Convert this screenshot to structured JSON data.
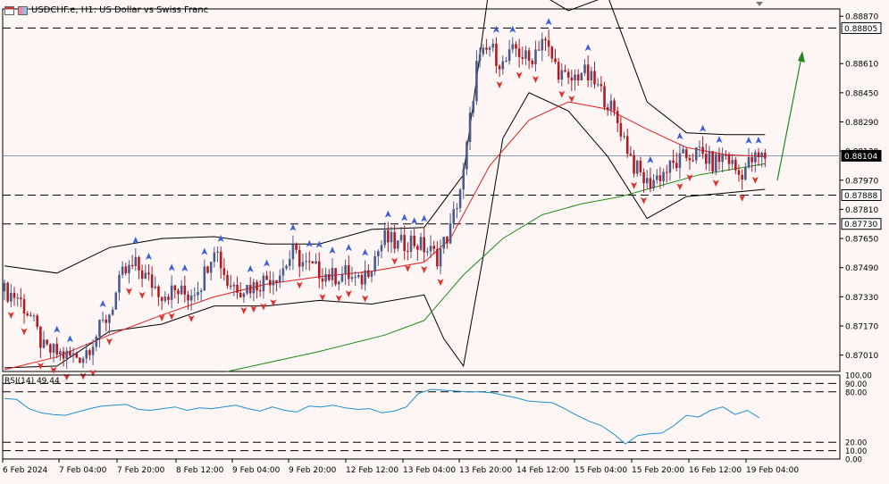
{
  "window": {
    "title": "USDCHF.e, H1:  US Dollar vs Swiss Franc"
  },
  "colors": {
    "background": "#fdf6f4",
    "bull": "#4b5a8a",
    "bear": "#b01a22",
    "ma_fast": "#e02020",
    "ma_slow": "#1e8a1e",
    "bollinger": "#000000",
    "rsi": "#1f8fd0",
    "arrow": "#1e8a1e",
    "fractal_up": "#3b5fd9",
    "fractal_down": "#e0302a"
  },
  "chart_data": [
    {
      "type": "candlestick",
      "symbol": "USDCHF.e",
      "timeframe": "H1",
      "title": "USDCHF.e, H1:  US Dollar vs Swiss Franc",
      "ylim": [
        0.8692,
        0.8891
      ],
      "y_tick_labels": [
        "0.88870",
        "0.88610",
        "0.88450",
        "0.88290",
        "0.88130",
        "0.87970",
        "0.87810",
        "0.87650",
        "0.87490",
        "0.87330",
        "0.87170",
        "0.87010"
      ],
      "x_tick_labels": [
        "6 Feb 2024",
        "7 Feb 04:00",
        "7 Feb 20:00",
        "8 Feb 12:00",
        "9 Feb 04:00",
        "9 Feb 20:00",
        "12 Feb 12:00",
        "13 Feb 04:00",
        "13 Feb 20:00",
        "14 Feb 12:00",
        "15 Feb 04:00",
        "15 Feb 20:00",
        "16 Feb 12:00",
        "19 Feb 04:00"
      ],
      "current_price": "0.88104",
      "horizontal_levels": [
        {
          "label": "0.88805",
          "value": 0.88805
        },
        {
          "label": "0.87888",
          "value": 0.87888
        },
        {
          "label": "0.87730",
          "value": 0.8773
        }
      ],
      "close_path": [
        [
          0,
          0.8736
        ],
        [
          4,
          0.8733
        ],
        [
          8,
          0.8722
        ],
        [
          12,
          0.8704
        ],
        [
          16,
          0.8702
        ],
        [
          20,
          0.87
        ],
        [
          24,
          0.8701
        ],
        [
          28,
          0.8712
        ],
        [
          32,
          0.8724
        ],
        [
          36,
          0.8745
        ],
        [
          40,
          0.875
        ],
        [
          44,
          0.8742
        ],
        [
          48,
          0.8735
        ],
        [
          52,
          0.8736
        ],
        [
          56,
          0.8734
        ],
        [
          60,
          0.8741
        ],
        [
          64,
          0.8762
        ],
        [
          68,
          0.8741
        ],
        [
          72,
          0.8738
        ],
        [
          76,
          0.8739
        ],
        [
          80,
          0.8743
        ],
        [
          84,
          0.8746
        ],
        [
          88,
          0.8757
        ],
        [
          92,
          0.875
        ],
        [
          96,
          0.8747
        ],
        [
          100,
          0.8744
        ],
        [
          104,
          0.8746
        ],
        [
          108,
          0.874
        ],
        [
          112,
          0.8752
        ],
        [
          116,
          0.8765
        ],
        [
          120,
          0.8761
        ],
        [
          124,
          0.8764
        ],
        [
          128,
          0.876
        ],
        [
          132,
          0.8755
        ],
        [
          136,
          0.877
        ],
        [
          140,
          0.88
        ],
        [
          144,
          0.886
        ],
        [
          148,
          0.887
        ],
        [
          152,
          0.886
        ],
        [
          156,
          0.8869
        ],
        [
          160,
          0.8862
        ],
        [
          164,
          0.8875
        ],
        [
          168,
          0.886
        ],
        [
          172,
          0.885
        ],
        [
          176,
          0.8857
        ],
        [
          180,
          0.885
        ],
        [
          184,
          0.884
        ],
        [
          188,
          0.8825
        ],
        [
          192,
          0.8805
        ],
        [
          196,
          0.8795
        ],
        [
          200,
          0.88
        ],
        [
          204,
          0.8805
        ],
        [
          208,
          0.881
        ],
        [
          212,
          0.8812
        ],
        [
          216,
          0.8806
        ],
        [
          220,
          0.8811
        ],
        [
          224,
          0.88
        ],
        [
          228,
          0.8808
        ],
        [
          232,
          0.881
        ]
      ],
      "bb_upper": [
        [
          0,
          0.875
        ],
        [
          16,
          0.8746
        ],
        [
          32,
          0.876
        ],
        [
          48,
          0.8765
        ],
        [
          64,
          0.8766
        ],
        [
          80,
          0.8762
        ],
        [
          96,
          0.8762
        ],
        [
          112,
          0.877
        ],
        [
          128,
          0.8771
        ],
        [
          140,
          0.88
        ],
        [
          148,
          0.8905
        ],
        [
          160,
          0.8903
        ],
        [
          172,
          0.889
        ],
        [
          184,
          0.8898
        ],
        [
          196,
          0.884
        ],
        [
          208,
          0.8823
        ],
        [
          220,
          0.8822
        ],
        [
          232,
          0.8822
        ]
      ],
      "bb_lower": [
        [
          0,
          0.8694
        ],
        [
          16,
          0.8695
        ],
        [
          32,
          0.8714
        ],
        [
          48,
          0.8718
        ],
        [
          64,
          0.8728
        ],
        [
          80,
          0.8728
        ],
        [
          96,
          0.8731
        ],
        [
          112,
          0.8729
        ],
        [
          128,
          0.8734
        ],
        [
          134,
          0.871
        ],
        [
          140,
          0.8695
        ],
        [
          146,
          0.8755
        ],
        [
          152,
          0.882
        ],
        [
          160,
          0.8845
        ],
        [
          172,
          0.8835
        ],
        [
          184,
          0.881
        ],
        [
          196,
          0.8776
        ],
        [
          208,
          0.8788
        ],
        [
          220,
          0.879
        ],
        [
          232,
          0.8792
        ]
      ],
      "ma_fast": [
        [
          0,
          0.8693
        ],
        [
          16,
          0.87
        ],
        [
          32,
          0.8712
        ],
        [
          48,
          0.8723
        ],
        [
          64,
          0.8733
        ],
        [
          80,
          0.874
        ],
        [
          96,
          0.8744
        ],
        [
          112,
          0.8747
        ],
        [
          128,
          0.8752
        ],
        [
          136,
          0.8765
        ],
        [
          148,
          0.8805
        ],
        [
          160,
          0.883
        ],
        [
          172,
          0.884
        ],
        [
          184,
          0.8836
        ],
        [
          196,
          0.8825
        ],
        [
          208,
          0.8815
        ],
        [
          220,
          0.8811
        ],
        [
          232,
          0.881
        ]
      ],
      "ma_slow": [
        [
          68,
          0.8692
        ],
        [
          96,
          0.8703
        ],
        [
          116,
          0.8712
        ],
        [
          128,
          0.872
        ],
        [
          140,
          0.8745
        ],
        [
          152,
          0.8765
        ],
        [
          164,
          0.8778
        ],
        [
          176,
          0.8784
        ],
        [
          188,
          0.8788
        ],
        [
          200,
          0.8794
        ],
        [
          212,
          0.88
        ],
        [
          232,
          0.8806
        ]
      ]
    },
    {
      "type": "line",
      "name": "RSI(14)",
      "label": "RSI(14) 49.44",
      "current_value": 49.44,
      "ylim": [
        0,
        100
      ],
      "levels": [
        {
          "label": "100.00",
          "value": 100
        },
        {
          "label": "90.00",
          "value": 90
        },
        {
          "label": "80.00",
          "value": 80
        },
        {
          "label": "20.00",
          "value": 20
        },
        {
          "label": "10.00",
          "value": 10
        },
        {
          "label": "0.00",
          "value": 0
        }
      ],
      "values": [
        72,
        71,
        60,
        55,
        53,
        52,
        56,
        60,
        63,
        64,
        65,
        59,
        58,
        60,
        62,
        58,
        61,
        60,
        62,
        64,
        60,
        57,
        62,
        58,
        56,
        63,
        62,
        64,
        61,
        59,
        60,
        55,
        57,
        62,
        78,
        83,
        82,
        81,
        80,
        80,
        79,
        76,
        73,
        69,
        68,
        67,
        60,
        52,
        45,
        40,
        30,
        18,
        28,
        30,
        31,
        40,
        52,
        50,
        58,
        62,
        53,
        58,
        49
      ]
    }
  ]
}
